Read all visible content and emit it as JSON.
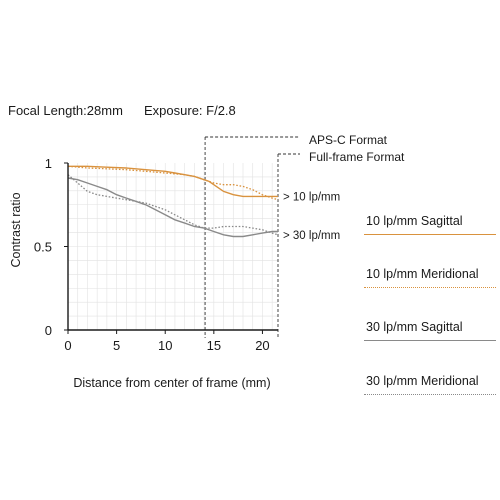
{
  "header": {
    "focal_length": "Focal Length:28mm",
    "exposure": "Exposure: F/2.8"
  },
  "colors": {
    "lp10": "#d9923e",
    "lp30": "#8a8a8a",
    "axis": "#1a1a1a"
  },
  "chart_data": {
    "type": "line",
    "xlabel": "Distance from center of frame (mm)",
    "ylabel": "Contrast ratio",
    "xlim": [
      0,
      21.6
    ],
    "ylim": [
      0,
      1
    ],
    "xticks": [
      0,
      5,
      10,
      15,
      20
    ],
    "yticks": [
      {
        "value": 0,
        "label": "0"
      },
      {
        "value": 0.5,
        "label": "0.5"
      },
      {
        "value": 1,
        "label": "1"
      }
    ],
    "grid": true,
    "markers": [
      {
        "x": 14.1,
        "label": "APS-C Format"
      },
      {
        "x": 21.6,
        "label": "Full-frame Format"
      }
    ],
    "group_labels": [
      {
        "label": "> 10 lp/mm",
        "y": 0.8
      },
      {
        "label": "> 30 lp/mm",
        "y": 0.57
      }
    ],
    "series": [
      {
        "name": "10 lp/mm Sagittal",
        "color": "#d9923e",
        "style": "solid",
        "x": [
          0,
          2,
          4,
          6,
          8,
          10,
          11,
          12,
          13,
          14,
          14.5,
          15,
          16,
          17,
          18,
          19,
          20,
          21,
          21.6
        ],
        "y": [
          0.98,
          0.98,
          0.975,
          0.97,
          0.96,
          0.95,
          0.94,
          0.93,
          0.92,
          0.9,
          0.89,
          0.87,
          0.83,
          0.81,
          0.8,
          0.8,
          0.8,
          0.8,
          0.8
        ]
      },
      {
        "name": "10 lp/mm Meridional",
        "color": "#d9923e",
        "style": "dotted",
        "x": [
          0,
          2,
          4,
          6,
          8,
          10,
          12,
          13,
          14,
          15,
          16,
          17,
          18,
          19,
          20,
          21,
          21.6
        ],
        "y": [
          0.98,
          0.97,
          0.965,
          0.96,
          0.95,
          0.94,
          0.93,
          0.92,
          0.9,
          0.88,
          0.87,
          0.87,
          0.86,
          0.84,
          0.81,
          0.79,
          0.78
        ]
      },
      {
        "name": "30 lp/mm Sagittal",
        "color": "#8a8a8a",
        "style": "solid",
        "x": [
          0,
          1,
          2,
          3,
          4,
          5,
          6,
          7,
          8,
          9,
          10,
          11,
          12,
          13,
          14,
          15,
          16,
          17,
          18,
          19,
          20,
          21,
          21.6
        ],
        "y": [
          0.91,
          0.9,
          0.88,
          0.86,
          0.84,
          0.81,
          0.79,
          0.77,
          0.75,
          0.72,
          0.69,
          0.66,
          0.64,
          0.62,
          0.61,
          0.59,
          0.57,
          0.56,
          0.56,
          0.57,
          0.58,
          0.59,
          0.59
        ]
      },
      {
        "name": "30 lp/mm Meridional",
        "color": "#8a8a8a",
        "style": "dotted",
        "x": [
          0,
          1,
          2,
          3,
          4,
          5,
          6,
          7,
          8,
          9,
          10,
          11,
          12,
          13,
          14,
          15,
          16,
          17,
          18,
          19,
          20,
          21,
          21.6
        ],
        "y": [
          0.93,
          0.88,
          0.83,
          0.81,
          0.8,
          0.79,
          0.78,
          0.77,
          0.76,
          0.74,
          0.72,
          0.69,
          0.66,
          0.63,
          0.61,
          0.61,
          0.62,
          0.62,
          0.62,
          0.61,
          0.6,
          0.58,
          0.57
        ]
      }
    ]
  }
}
